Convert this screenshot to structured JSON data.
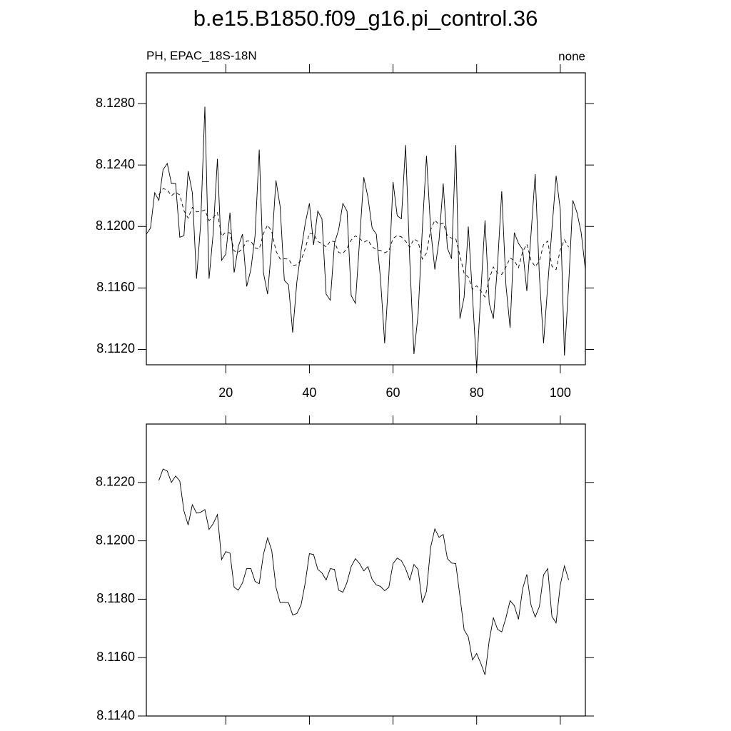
{
  "chart_data": [
    {
      "type": "line",
      "title": "b.e15.B1850.f09_g16.pi_control.36",
      "subtitle_left": "PH, EPAC_18S-18N",
      "subtitle_right": "none",
      "xlim": [
        1,
        106
      ],
      "ylim": [
        8.111,
        8.13
      ],
      "xticks": [
        20,
        40,
        60,
        80,
        100
      ],
      "yticks": [
        {
          "value": 8.112,
          "label": "8.1120"
        },
        {
          "value": 8.116,
          "label": "8.1160"
        },
        {
          "value": 8.12,
          "label": "8.1200"
        },
        {
          "value": 8.124,
          "label": "8.1240"
        },
        {
          "value": 8.128,
          "label": "8.1280"
        }
      ],
      "series": [
        {
          "color": "#000000",
          "dash": false,
          "x": [
            1,
            2,
            3,
            4,
            5,
            6,
            7,
            8,
            9,
            10,
            11,
            12,
            13,
            14,
            15,
            16,
            17,
            18,
            19,
            20,
            21,
            22,
            23,
            24,
            25,
            26,
            27,
            28,
            29,
            30,
            31,
            32,
            33,
            34,
            35,
            36,
            37,
            38,
            39,
            40,
            41,
            42,
            43,
            44,
            45,
            46,
            47,
            48,
            49,
            50,
            51,
            52,
            53,
            54,
            55,
            56,
            57,
            58,
            59,
            60,
            61,
            62,
            63,
            64,
            65,
            66,
            67,
            68,
            69,
            70,
            71,
            72,
            73,
            74,
            75,
            76,
            77,
            78,
            79,
            80,
            81,
            82,
            83,
            84,
            85,
            86,
            87,
            88,
            89,
            90,
            91,
            92,
            93,
            94,
            95,
            96,
            97,
            98,
            99,
            100,
            101,
            102,
            103,
            104,
            105,
            106
          ],
          "values": [
            8.1195,
            8.1199,
            8.1222,
            8.1217,
            8.1237,
            8.1241,
            8.1228,
            8.1228,
            8.1193,
            8.1194,
            8.1236,
            8.1222,
            8.1166,
            8.1202,
            8.1278,
            8.1166,
            8.1196,
            8.1244,
            8.1178,
            8.1182,
            8.1209,
            8.117,
            8.1187,
            8.1195,
            8.1161,
            8.1172,
            8.1194,
            8.125,
            8.117,
            8.1156,
            8.1188,
            8.123,
            8.1213,
            8.1165,
            8.1162,
            8.1131,
            8.1164,
            8.1184,
            8.1202,
            8.1215,
            8.1188,
            8.121,
            8.1205,
            8.1156,
            8.1152,
            8.1189,
            8.1198,
            8.1215,
            8.121,
            8.1155,
            8.115,
            8.1191,
            8.1232,
            8.1219,
            8.1199,
            8.1195,
            8.1166,
            8.1124,
            8.1168,
            8.1229,
            8.1207,
            8.1205,
            8.1253,
            8.1178,
            8.1117,
            8.1143,
            8.1198,
            8.1246,
            8.1198,
            8.1172,
            8.1191,
            8.1228,
            8.1186,
            8.1179,
            8.1253,
            8.114,
            8.1154,
            8.12,
            8.1155,
            8.1108,
            8.1157,
            8.1204,
            8.115,
            8.114,
            8.1175,
            8.1223,
            8.1162,
            8.1134,
            8.1196,
            8.1189,
            8.1185,
            8.1158,
            8.1195,
            8.1234,
            8.1168,
            8.1124,
            8.1162,
            8.1198,
            8.1233,
            8.1211,
            8.1116,
            8.1162,
            8.1217,
            8.1209,
            8.1196,
            8.1172
          ]
        },
        {
          "color": "#000000",
          "dash": true,
          "x": [
            4,
            5,
            6,
            7,
            8,
            9,
            10,
            11,
            12,
            13,
            14,
            15,
            16,
            17,
            18,
            19,
            20,
            21,
            22,
            23,
            24,
            25,
            26,
            27,
            28,
            29,
            30,
            31,
            32,
            33,
            34,
            35,
            36,
            37,
            38,
            39,
            40,
            41,
            42,
            43,
            44,
            45,
            46,
            47,
            48,
            49,
            50,
            51,
            52,
            53,
            54,
            55,
            56,
            57,
            58,
            59,
            60,
            61,
            62,
            63,
            64,
            65,
            66,
            67,
            68,
            69,
            70,
            71,
            72,
            73,
            74,
            75,
            76,
            77,
            78,
            79,
            80,
            81,
            82,
            83,
            84,
            85,
            86,
            87,
            88,
            89,
            90,
            91,
            92,
            93,
            94,
            95,
            96,
            97,
            98,
            99,
            100,
            101,
            102
          ],
          "values": [
            8.12207,
            8.12246,
            8.12239,
            8.122,
            8.12222,
            8.12205,
            8.12102,
            8.12054,
            8.12124,
            8.12095,
            8.12098,
            8.12107,
            8.12039,
            8.12059,
            8.1209,
            8.11936,
            8.11963,
            8.11958,
            8.11841,
            8.11831,
            8.11856,
            8.11905,
            8.11905,
            8.11861,
            8.11853,
            8.11953,
            8.1201,
            8.11966,
            8.11841,
            8.11788,
            8.1179,
            8.11788,
            8.11746,
            8.11751,
            8.1178,
            8.11856,
            8.11956,
            8.11953,
            8.11902,
            8.1189,
            8.11866,
            8.11905,
            8.11902,
            8.11831,
            8.11824,
            8.11858,
            8.11912,
            8.11939,
            8.11922,
            8.11897,
            8.11912,
            8.11868,
            8.11849,
            8.11844,
            8.11829,
            8.11841,
            8.11922,
            8.11941,
            8.11932,
            8.11905,
            8.11866,
            8.11919,
            8.11902,
            8.11788,
            8.11827,
            8.11978,
            8.12041,
            8.12012,
            8.12022,
            8.11939,
            8.11924,
            8.11922,
            8.1181,
            8.11695,
            8.11671,
            8.11592,
            8.11614,
            8.1158,
            8.11541,
            8.11658,
            8.11736,
            8.11697,
            8.11688,
            8.11736,
            8.11795,
            8.11778,
            8.11731,
            8.11836,
            8.11885,
            8.1178,
            8.11739,
            8.11775,
            8.11883,
            8.11905,
            8.11741,
            8.11719,
            8.11849,
            8.11914,
            8.11866
          ]
        }
      ]
    },
    {
      "type": "line",
      "xlim": [
        1,
        106
      ],
      "ylim": [
        8.114,
        8.124
      ],
      "xticks": [
        20,
        40,
        60,
        80,
        100
      ],
      "yticks": [
        {
          "value": 8.114,
          "label": "8.1140"
        },
        {
          "value": 8.116,
          "label": "8.1160"
        },
        {
          "value": 8.118,
          "label": "8.1180"
        },
        {
          "value": 8.12,
          "label": "8.1200"
        },
        {
          "value": 8.122,
          "label": "8.1220"
        }
      ],
      "xtick_labels_hidden": true,
      "series": [
        {
          "color": "#000000",
          "dash": false,
          "x": [
            4,
            5,
            6,
            7,
            8,
            9,
            10,
            11,
            12,
            13,
            14,
            15,
            16,
            17,
            18,
            19,
            20,
            21,
            22,
            23,
            24,
            25,
            26,
            27,
            28,
            29,
            30,
            31,
            32,
            33,
            34,
            35,
            36,
            37,
            38,
            39,
            40,
            41,
            42,
            43,
            44,
            45,
            46,
            47,
            48,
            49,
            50,
            51,
            52,
            53,
            54,
            55,
            56,
            57,
            58,
            59,
            60,
            61,
            62,
            63,
            64,
            65,
            66,
            67,
            68,
            69,
            70,
            71,
            72,
            73,
            74,
            75,
            76,
            77,
            78,
            79,
            80,
            81,
            82,
            83,
            84,
            85,
            86,
            87,
            88,
            89,
            90,
            91,
            92,
            93,
            94,
            95,
            96,
            97,
            98,
            99,
            100,
            101,
            102
          ],
          "values": [
            8.12207,
            8.12246,
            8.12239,
            8.122,
            8.12222,
            8.12205,
            8.12102,
            8.12054,
            8.12124,
            8.12095,
            8.12098,
            8.12107,
            8.12039,
            8.12059,
            8.1209,
            8.11936,
            8.11963,
            8.11958,
            8.11841,
            8.11831,
            8.11856,
            8.11905,
            8.11905,
            8.11861,
            8.11853,
            8.11953,
            8.1201,
            8.11966,
            8.11841,
            8.11788,
            8.1179,
            8.11788,
            8.11746,
            8.11751,
            8.1178,
            8.11856,
            8.11956,
            8.11953,
            8.11902,
            8.1189,
            8.11866,
            8.11905,
            8.11902,
            8.11831,
            8.11824,
            8.11858,
            8.11912,
            8.11939,
            8.11922,
            8.11897,
            8.11912,
            8.11868,
            8.11849,
            8.11844,
            8.11829,
            8.11841,
            8.11922,
            8.11941,
            8.11932,
            8.11905,
            8.11866,
            8.11919,
            8.11902,
            8.11788,
            8.11827,
            8.11978,
            8.12041,
            8.12012,
            8.12022,
            8.11939,
            8.11924,
            8.11922,
            8.1181,
            8.11695,
            8.11671,
            8.11592,
            8.11614,
            8.1158,
            8.11541,
            8.11658,
            8.11736,
            8.11697,
            8.11688,
            8.11736,
            8.11795,
            8.11778,
            8.11731,
            8.11836,
            8.11885,
            8.1178,
            8.11739,
            8.11775,
            8.11883,
            8.11905,
            8.11741,
            8.11719,
            8.11849,
            8.11914,
            8.11866
          ]
        }
      ]
    }
  ]
}
